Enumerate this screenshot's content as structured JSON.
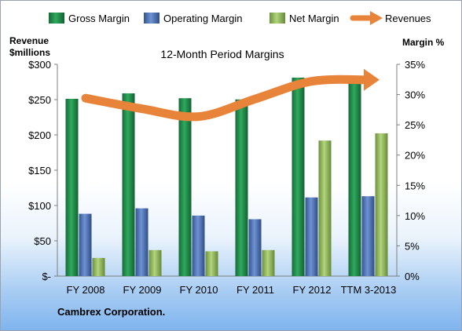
{
  "chart_data": {
    "type": "bar",
    "title": "12-Month Period Margins",
    "footer": "Cambrex Corporation.",
    "left_axis_label": [
      "Revenue",
      "$millions"
    ],
    "right_axis_label": "Margin %",
    "categories": [
      "FY 2008",
      "FY 2009",
      "FY 2010",
      "FY 2011",
      "FY 2012",
      "TTM 3-2013"
    ],
    "left_axis": {
      "min": 0,
      "max": 300,
      "ticks": [
        0,
        50,
        100,
        150,
        200,
        250,
        300
      ],
      "tick_labels": [
        "$-",
        "$50",
        "$100",
        "$150",
        "$200",
        "$250",
        "$300"
      ]
    },
    "right_axis": {
      "min": 0,
      "max": 35,
      "ticks": [
        0,
        5,
        10,
        15,
        20,
        25,
        30,
        35
      ],
      "tick_labels": [
        "0%",
        "5%",
        "10%",
        "15%",
        "20%",
        "25%",
        "30%",
        "35%"
      ]
    },
    "series": [
      {
        "name": "Gross Margin",
        "kind": "bar",
        "axis": "right",
        "color": "#1e8a4a",
        "values": [
          29.3,
          30.2,
          29.4,
          29.2,
          32.8,
          33.0
        ]
      },
      {
        "name": "Operating Margin",
        "kind": "bar",
        "axis": "right",
        "color": "#4a6fb5",
        "values": [
          10.3,
          11.2,
          10.0,
          9.4,
          13.0,
          13.2
        ]
      },
      {
        "name": "Net Margin",
        "kind": "bar",
        "axis": "right",
        "color": "#8fb85a",
        "values": [
          3.0,
          4.3,
          4.1,
          4.3,
          22.4,
          23.6
        ]
      },
      {
        "name": "Revenues",
        "kind": "line",
        "axis": "left",
        "color": "#e8833a",
        "values": [
          252,
          237,
          226,
          251,
          276,
          278
        ]
      }
    ],
    "legend_position": "top",
    "grid": false
  }
}
